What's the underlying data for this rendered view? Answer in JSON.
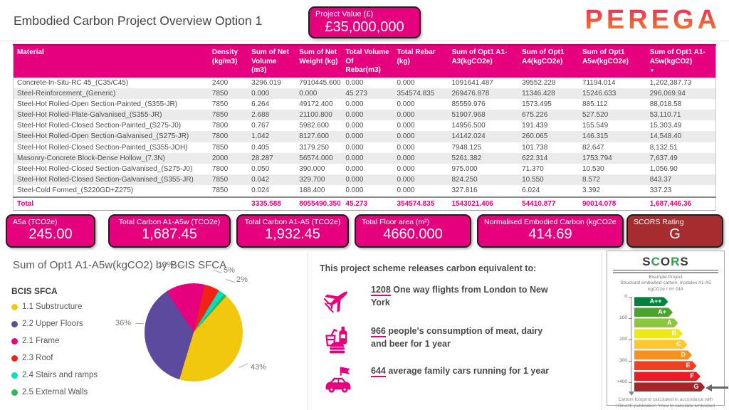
{
  "header": {
    "title": "Embodied Carbon Project Overview Option 1",
    "project_value_label": "Project Value (£)",
    "project_value": "£35,000,000",
    "logo_text": "PEREGA"
  },
  "colors": {
    "accent_pink": "#E6007E",
    "scors_rating_red": "#A72C2F"
  },
  "table": {
    "columns": [
      "Material",
      "Density (kg/m3)",
      "Sum of Net Volume (m3)",
      "Sum of Net Weight (kg)",
      "Total Volume Of Rebar(m3)",
      "Total Rebar (kg)",
      "Sum of Opt1 A1-A3(kgCO2e)",
      "Sum of Opt1 A4(kgCO2e)",
      "Sum of Opt1 A5w(kgCO2e)",
      "Sum of Opt1 A1-A5w(kgCO2)"
    ],
    "sorted_column_index": 9,
    "sort_icon": "▼",
    "rows": [
      [
        "Concrete-In-Situ-RC 45_(C35/C45)",
        "2400",
        "3296.019",
        "7910445.600",
        "0.000",
        "0.000",
        "1091641.487",
        "39552.228",
        "71194.014",
        "1,202,387.73"
      ],
      [
        "Steel-Reinforcement_(Generic)",
        "7850",
        "0.000",
        "0.000",
        "45.273",
        "354574.835",
        "269476.878",
        "11346.428",
        "15246.633",
        "296,069.94"
      ],
      [
        "Steel-Hot Rolled-Open Section-Painted_(S355-JR)",
        "7850",
        "6.264",
        "49172.400",
        "0.000",
        "0.000",
        "85559.976",
        "1573.495",
        "885.112",
        "88,018.58"
      ],
      [
        "Steel-Hot Rolled-Plate-Galvanised_(S355-JR)",
        "7850",
        "2.688",
        "21100.800",
        "0.000",
        "0.000",
        "51907.968",
        "675.226",
        "527.520",
        "53,110.71"
      ],
      [
        "Steel-Hot Rolled-Closed Section-Painted_(S275-J0)",
        "7800",
        "0.767",
        "5982.600",
        "0.000",
        "0.000",
        "14956.500",
        "191.439",
        "155.549",
        "15,303.49"
      ],
      [
        "Steel-Hot Rolled-Open Section-Galvanised_(S275-JR)",
        "7800",
        "1.042",
        "8127.600",
        "0.000",
        "0.000",
        "14142.024",
        "260.065",
        "146.315",
        "14,548.40"
      ],
      [
        "Steel-Hot Rolled-Closed Section-Painted_(S355-JOH)",
        "7850",
        "0.405",
        "3179.250",
        "0.000",
        "0.000",
        "7948.125",
        "101.738",
        "82.647",
        "8,132.51"
      ],
      [
        "Masonry-Concrete Block-Dense Hollow_(7.3N)",
        "2000",
        "28.287",
        "56574.000",
        "0.000",
        "0.000",
        "5261.382",
        "622.314",
        "1753.794",
        "7,637.49"
      ],
      [
        "Steel-Hot Rolled-Closed Section-Galvanised_(S275-J0)",
        "7800",
        "0.050",
        "390.000",
        "0.000",
        "0.000",
        "975.000",
        "71.370",
        "10.530",
        "1,056.90"
      ],
      [
        "Steel-Hot Rolled-Closed Section-Galvanised_(S355-JR)",
        "7850",
        "0.042",
        "329.700",
        "0.000",
        "0.000",
        "824.250",
        "10.550",
        "8.572",
        "843.37"
      ],
      [
        "Steel-Cold Formed_(S220GD+Z275)",
        "7850",
        "0.024",
        "188.400",
        "0.000",
        "0.000",
        "327.816",
        "6.024",
        "3.392",
        "337.23"
      ]
    ],
    "total": [
      "Total",
      "",
      "3335.588",
      "8055490.350",
      "45.273",
      "354574.835",
      "1543021.406",
      "54410.877",
      "90014.078",
      "1,687,446.36"
    ]
  },
  "kpis": [
    {
      "label": "A5a (TCO2e)",
      "value": "245.00",
      "align": "left"
    },
    {
      "label": "Total Carbon A1-A5w (TCO2e)",
      "value": "1,687.45",
      "align": "center"
    },
    {
      "label": "Total Carbon A1-A5 (TCO2e)",
      "value": "1,932.45",
      "align": "center"
    },
    {
      "label": "Total Floor area (m²)",
      "value": "4660.000",
      "align": "left"
    },
    {
      "label": "Normalised Embodied Carbon (kgCO2e/m²)",
      "value": "414.69",
      "align": "center"
    },
    {
      "label": "SCORS Rating",
      "value": "G",
      "align": "left",
      "color": "#A72C2F"
    }
  ],
  "chart_data": {
    "type": "pie",
    "title": "Sum of Opt1 A1-A5w(kgCO2) by BCIS SFCA",
    "legend_title": "BCIS SFCA",
    "legend_position": "left",
    "slices": [
      {
        "label": "1.1 Substructure",
        "pct": 43,
        "color": "#F2C80F"
      },
      {
        "label": "2.2 Upper Floors",
        "pct": 36,
        "color": "#5B4A9E"
      },
      {
        "label": "2.1 Frame",
        "pct": 13,
        "color": "#E6007E"
      },
      {
        "label": "2.3 Roof",
        "pct": 5,
        "color": "#F02314"
      },
      {
        "label": "2.4 Stairs and ramps",
        "pct": 2,
        "color": "#00E0BE"
      },
      {
        "label": "2.5 External Walls",
        "pct": 1,
        "color": "#2DB757"
      }
    ]
  },
  "equivalents": {
    "heading": "This project scheme releases carbon equivalent to:",
    "items": [
      {
        "icon": "plane-icon",
        "number": "1208",
        "text": "One way flights from London to New York"
      },
      {
        "icon": "food-icon",
        "number": "966",
        "text": "people's consumption of meat, dairy and beer for 1 year"
      },
      {
        "icon": "car-icon",
        "number": "644",
        "text": "average family cars running for 1 year"
      }
    ]
  },
  "scors": {
    "title_letters": [
      {
        "ch": "S",
        "color": "#3b3b3b"
      },
      {
        "ch": "C",
        "color": "#2E9E49"
      },
      {
        "ch": "O",
        "color": "#3b3b3b"
      },
      {
        "ch": "R",
        "color": "#2E9E49"
      },
      {
        "ch": "S",
        "color": "#3b3b3b"
      }
    ],
    "subtitle_lines": [
      "Example Project",
      "Structural embodied carbon, modules A1-A5",
      "kgCO2e / m² GIA"
    ],
    "scale_labels": [
      "0",
      "100",
      "200",
      "300",
      ">400"
    ],
    "bands": [
      {
        "label": "A++",
        "color": "#00843D",
        "width_pct": 44
      },
      {
        "label": "A+",
        "color": "#4BA32E",
        "width_pct": 50
      },
      {
        "label": "A",
        "color": "#8DC63F",
        "width_pct": 57
      },
      {
        "label": "B",
        "color": "#EDE819",
        "width_pct": 63
      },
      {
        "label": "C",
        "color": "#FDC72F",
        "width_pct": 69
      },
      {
        "label": "D",
        "color": "#F6911E",
        "width_pct": 75
      },
      {
        "label": "E",
        "color": "#EE4023",
        "width_pct": 81
      },
      {
        "label": "F",
        "color": "#EA1C24",
        "width_pct": 86
      },
      {
        "label": "G",
        "color": "#A6242A",
        "width_pct": 92
      }
    ],
    "current_rating": "G",
    "footer": "Carbon footprint calculated in accordance with IStructE publication \"How to calculate embodied carbon\"."
  }
}
